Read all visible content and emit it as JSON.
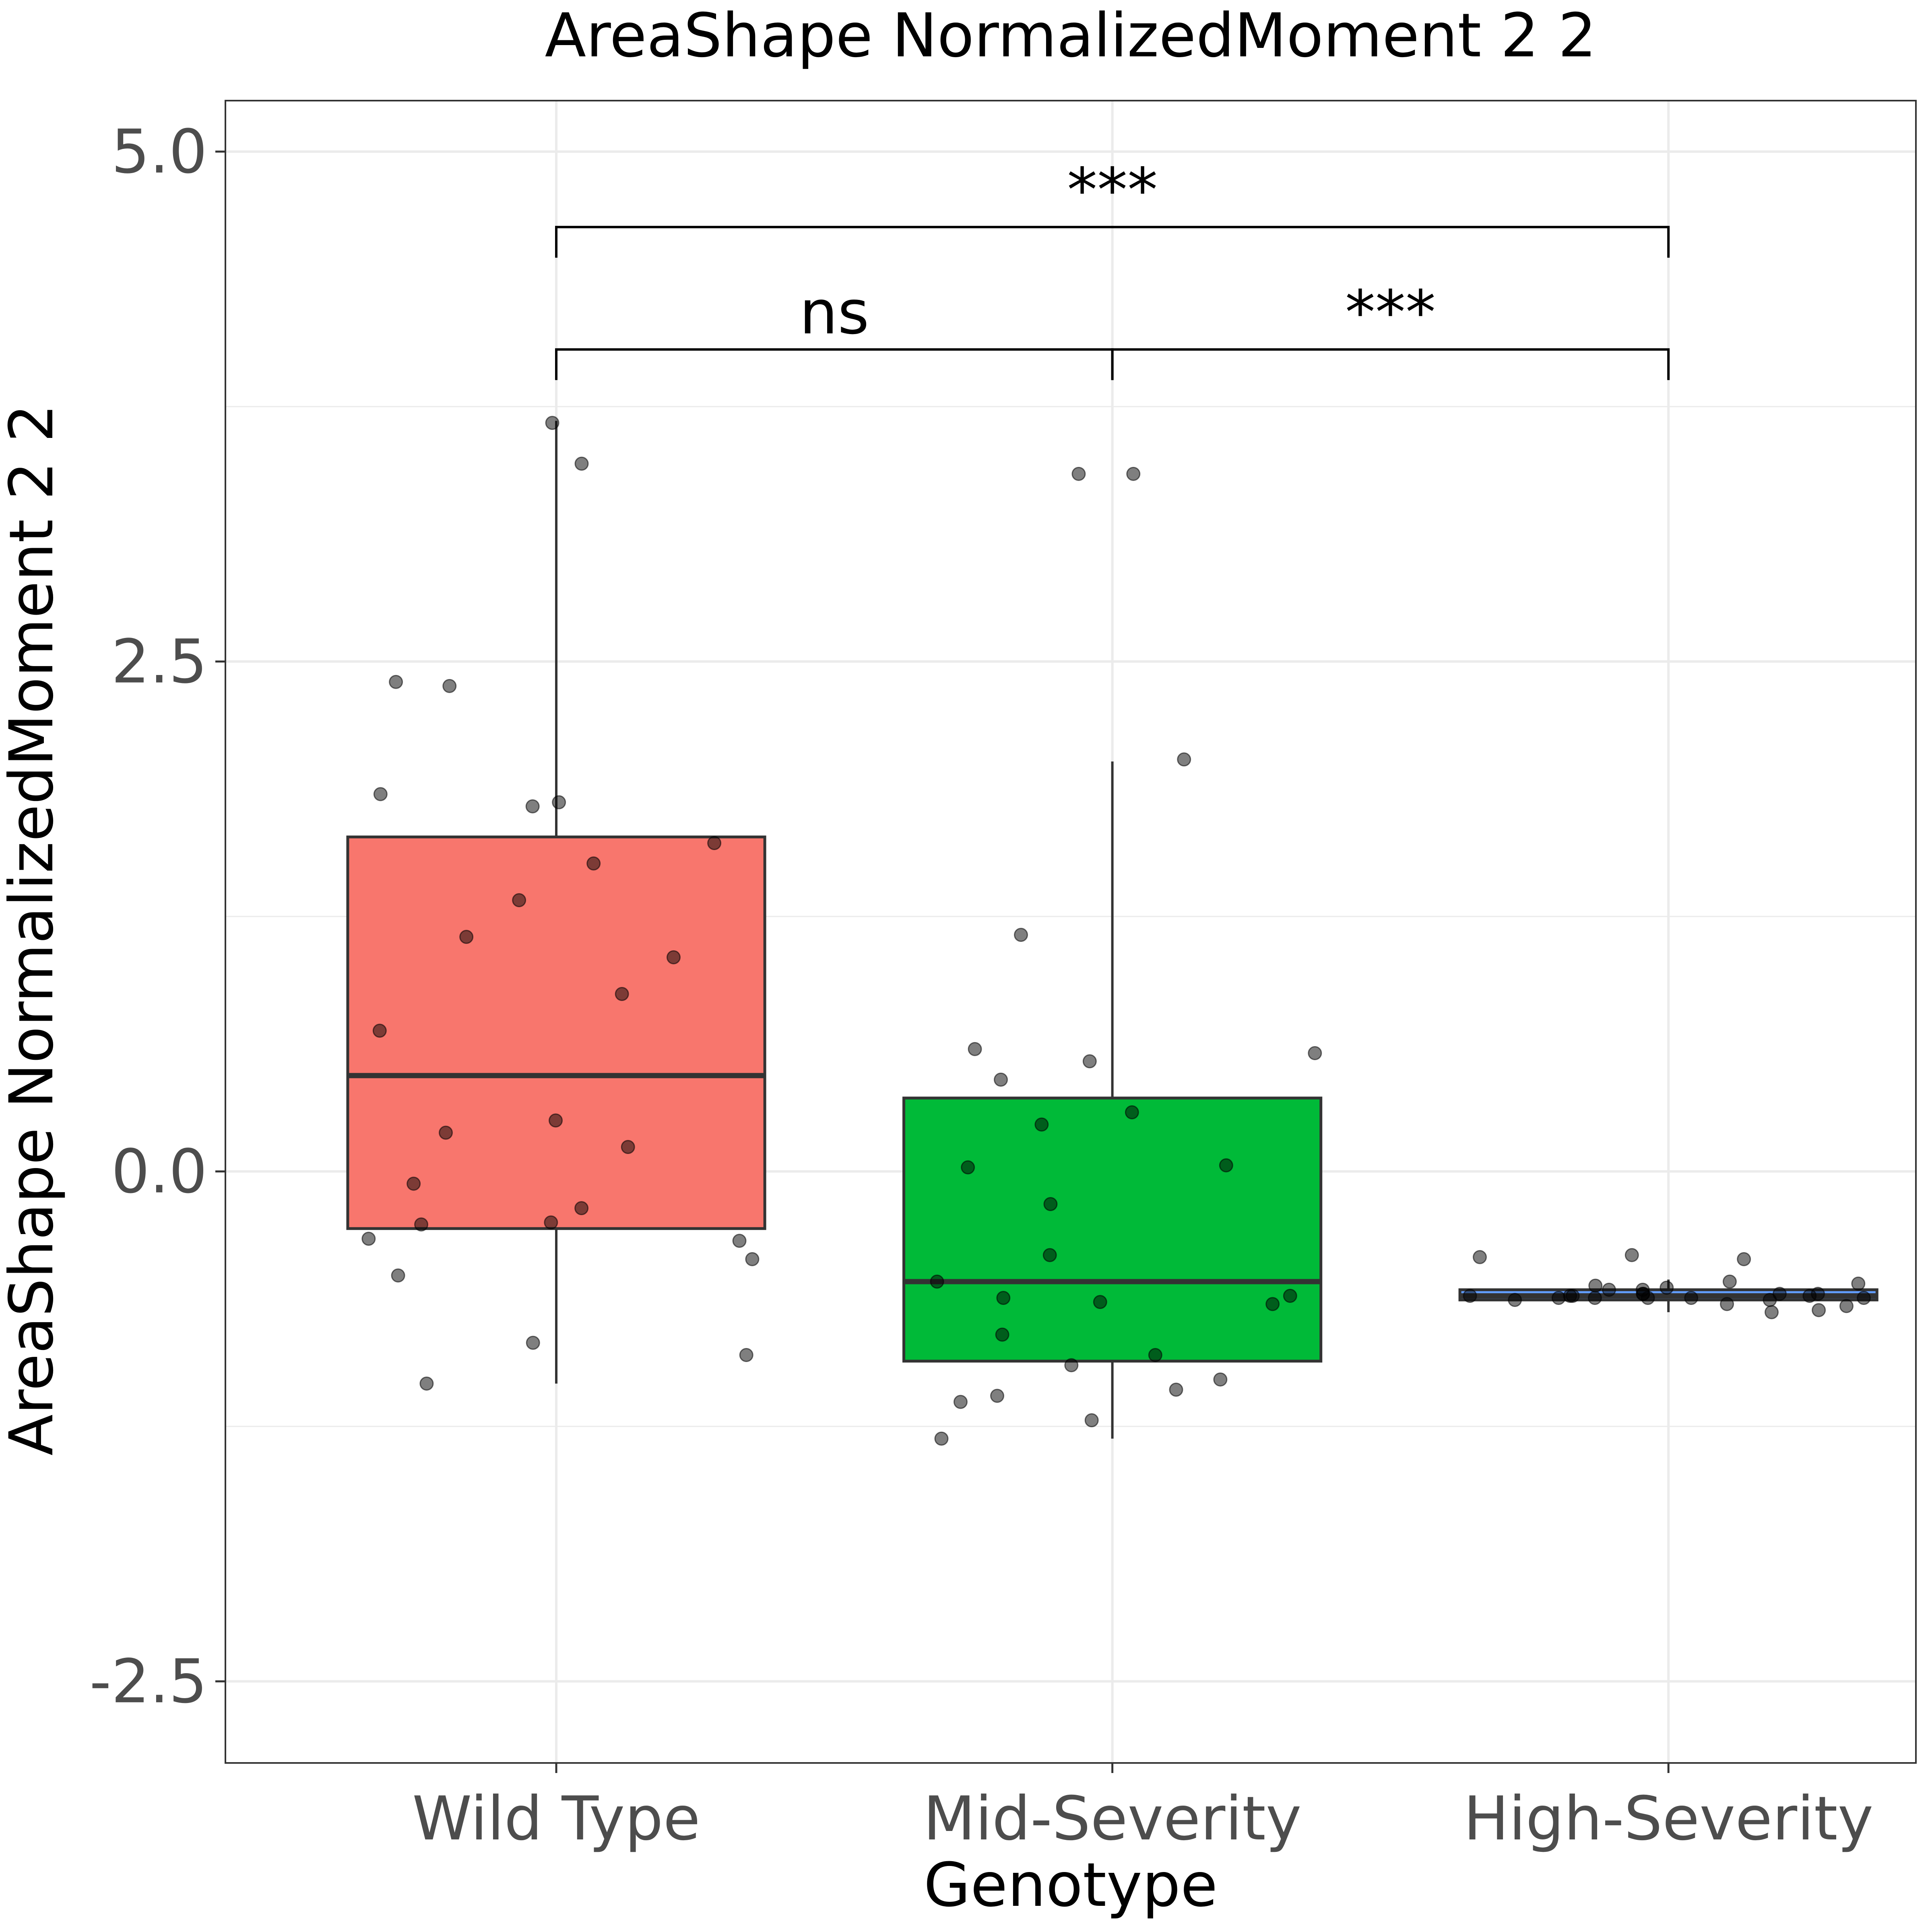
{
  "chart_data": {
    "type": "box",
    "title": "AreaShape NormalizedMoment 2 2",
    "xlabel": "Genotype",
    "ylabel": "AreaShape NormalizedMoment 2 2",
    "ylim": [
      -2.9,
      5.25
    ],
    "yticks": [
      -2.5,
      0.0,
      2.5,
      5.0
    ],
    "ytick_labels": [
      "-2.5",
      "0.0",
      "2.5",
      "5.0"
    ],
    "grid": true,
    "legend": "none",
    "categories": [
      "Wild Type",
      "Mid-Severity",
      "High-Severity"
    ],
    "boxes": [
      {
        "category": "Wild Type",
        "color": "#F8766D",
        "whisker_low": -1.04,
        "q1": -0.28,
        "median": 0.47,
        "q3": 1.64,
        "whisker_high": 3.68
      },
      {
        "category": "Mid-Severity",
        "color": "#00BA38",
        "whisker_low": -1.31,
        "q1": -0.93,
        "median": -0.54,
        "q3": 0.36,
        "whisker_high": 2.01
      },
      {
        "category": "High-Severity",
        "color": "#619CFF",
        "whisker_low": -0.69,
        "q1": -0.63,
        "median": -0.61,
        "q3": -0.58,
        "whisker_high": -0.53
      }
    ],
    "points": [
      {
        "category": "Wild Type",
        "values": [
          3.67,
          3.47,
          2.4,
          2.38,
          1.79,
          1.81,
          1.85,
          1.61,
          1.51,
          1.33,
          1.15,
          1.05,
          0.87,
          0.69,
          0.25,
          0.19,
          0.12,
          -0.06,
          -0.18,
          -0.25,
          -0.26,
          -0.33,
          -0.34,
          -0.43,
          -0.51,
          -0.84,
          -0.9,
          -1.04
        ]
      },
      {
        "category": "Mid-Severity",
        "values": [
          3.42,
          3.42,
          2.02,
          1.16,
          0.6,
          0.58,
          0.54,
          0.45,
          0.29,
          0.23,
          0.02,
          0.03,
          -0.16,
          -0.41,
          -0.54,
          -0.61,
          -0.62,
          -0.65,
          -0.64,
          -0.8,
          -0.9,
          -0.95,
          -1.02,
          -1.07,
          -1.13,
          -1.1,
          -1.22,
          -1.31
        ]
      },
      {
        "category": "High-Severity",
        "values": [
          -0.42,
          -0.41,
          -0.43,
          -0.54,
          -0.55,
          -0.56,
          -0.58,
          -0.57,
          -0.6,
          -0.61,
          -0.62,
          -0.6,
          -0.61,
          -0.62,
          -0.63,
          -0.63,
          -0.61,
          -0.6,
          -0.6,
          -0.62,
          -0.66,
          -0.68,
          -0.69,
          -0.65,
          -0.62,
          -0.61,
          -0.62,
          -0.58
        ]
      }
    ],
    "comparisons": [
      {
        "from": "Wild Type",
        "to": "High-Severity",
        "y": 4.63,
        "label": "***"
      },
      {
        "from": "Wild Type",
        "to": "Mid-Severity",
        "y": 4.03,
        "label": "ns"
      },
      {
        "from": "Mid-Severity",
        "to": "High-Severity",
        "y": 4.03,
        "label": "***"
      }
    ]
  }
}
